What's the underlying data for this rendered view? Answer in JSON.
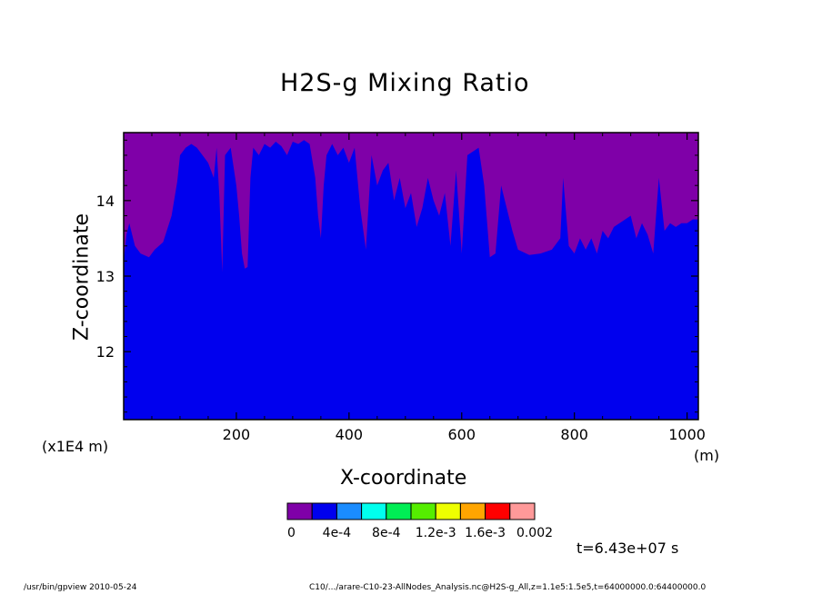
{
  "chart_data": {
    "type": "heatmap",
    "title": "H2S-g Mixing Ratio",
    "xlabel": "X-coordinate",
    "ylabel": "Z-coordinate",
    "x_unit": "(m)",
    "y_unit": "(x1E4 m)",
    "xlim": [
      0,
      1020
    ],
    "ylim": [
      11.1,
      14.9
    ],
    "x_ticks": [
      200,
      400,
      600,
      800,
      1000
    ],
    "y_ticks": [
      12,
      13,
      14
    ],
    "x_tick_labels": [
      "200",
      "400",
      "600",
      "800",
      "1000"
    ],
    "y_tick_labels": [
      "12",
      "13",
      "14"
    ],
    "colorbar": {
      "labels": [
        "0",
        "4e-4",
        "8e-4",
        "1.2e-3",
        "1.6e-3",
        "0.002"
      ],
      "colors": [
        "#7f00a8",
        "#0000ee",
        "#1a8cff",
        "#00ffee",
        "#00ee55",
        "#55ee00",
        "#eeff00",
        "#ffa500",
        "#ff0000",
        "#ff9999"
      ]
    },
    "regions": [
      {
        "level_index": 0,
        "color": "#7f00a8",
        "description_level": "lowest"
      },
      {
        "level_index": 1,
        "color": "#0000ee",
        "description_level": "second"
      }
    ],
    "boundary_x": [
      0,
      5,
      10,
      20,
      30,
      45,
      55,
      70,
      85,
      95,
      100,
      110,
      120,
      130,
      140,
      150,
      160,
      165,
      170,
      175,
      180,
      190,
      200,
      205,
      210,
      215,
      220,
      225,
      230,
      240,
      250,
      260,
      270,
      280,
      290,
      300,
      310,
      320,
      330,
      340,
      345,
      350,
      355,
      360,
      370,
      380,
      390,
      400,
      410,
      420,
      430,
      440,
      450,
      460,
      470,
      480,
      490,
      500,
      510,
      520,
      530,
      540,
      550,
      560,
      570,
      580,
      590,
      600,
      610,
      620,
      630,
      640,
      650,
      660,
      670,
      680,
      690,
      700,
      720,
      740,
      760,
      775,
      780,
      790,
      800,
      810,
      820,
      830,
      840,
      850,
      860,
      870,
      880,
      890,
      900,
      910,
      920,
      930,
      940,
      950,
      960,
      970,
      980,
      990,
      1000,
      1010,
      1020
    ],
    "boundary_z": [
      13.2,
      13.55,
      13.7,
      13.4,
      13.3,
      13.25,
      13.35,
      13.45,
      13.8,
      14.25,
      14.6,
      14.7,
      14.75,
      14.7,
      14.6,
      14.5,
      14.3,
      14.7,
      14.05,
      13.05,
      14.6,
      14.7,
      14.2,
      13.8,
      13.3,
      13.1,
      13.12,
      14.3,
      14.7,
      14.6,
      14.75,
      14.7,
      14.78,
      14.72,
      14.6,
      14.78,
      14.75,
      14.8,
      14.75,
      14.3,
      13.8,
      13.5,
      14.2,
      14.6,
      14.75,
      14.6,
      14.7,
      14.5,
      14.7,
      13.9,
      13.35,
      14.6,
      14.2,
      14.4,
      14.5,
      14.0,
      14.3,
      13.9,
      14.1,
      13.65,
      13.9,
      14.3,
      14.0,
      13.8,
      14.1,
      13.4,
      14.4,
      13.3,
      14.6,
      14.65,
      14.7,
      14.2,
      13.25,
      13.3,
      14.2,
      13.9,
      13.6,
      13.35,
      13.28,
      13.3,
      13.35,
      13.5,
      14.3,
      13.4,
      13.3,
      13.5,
      13.35,
      13.5,
      13.3,
      13.6,
      13.5,
      13.65,
      13.7,
      13.75,
      13.8,
      13.5,
      13.7,
      13.55,
      13.3,
      14.3,
      13.6,
      13.7,
      13.65,
      13.7,
      13.7,
      13.75,
      13.75
    ]
  },
  "annotations": {
    "time": "t=6.43e+07 s",
    "footer_left": "/usr/bin/gpview   2010-05-24",
    "footer_right": "C10/.../arare-C10-23-AllNodes_Analysis.nc@H2S-g_All,z=1.1e5:1.5e5,t=64000000.0:64400000.0"
  }
}
